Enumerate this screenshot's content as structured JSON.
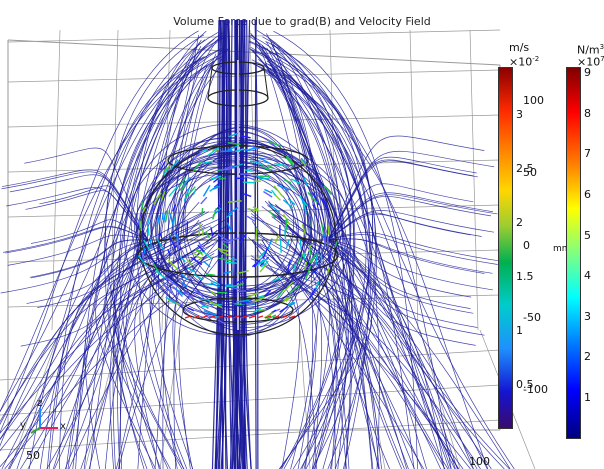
{
  "plot": {
    "title": "Volume Force due to grad(B) and Velocity Field"
  },
  "axes": {
    "grid_label_50": "50",
    "grid_label_100": "100",
    "side_label_mm": "mm",
    "triad": {
      "z": "z",
      "y": "y",
      "x": "x"
    }
  },
  "colorbar_velocity": {
    "unit": "m/s",
    "multiplier": "×10",
    "multiplier_exp": "-2",
    "ticks": [
      "3",
      "2.5",
      "2",
      "1.5",
      "1",
      "0.5"
    ],
    "colormap": "rainbow"
  },
  "axis_vertical": {
    "ticks": [
      "100",
      "50",
      "0",
      "-50",
      "-100"
    ]
  },
  "colorbar_force": {
    "unit": "N/m",
    "unit_exp": "3",
    "multiplier": "×10",
    "multiplier_exp": "7",
    "ticks": [
      "9",
      "8",
      "7",
      "6",
      "5",
      "4",
      "3",
      "2",
      "1"
    ],
    "colormap": "jet"
  },
  "colors": {
    "streamline": "#1a1a9a",
    "grid": "#9a9a9a",
    "outline": "#222222"
  }
}
